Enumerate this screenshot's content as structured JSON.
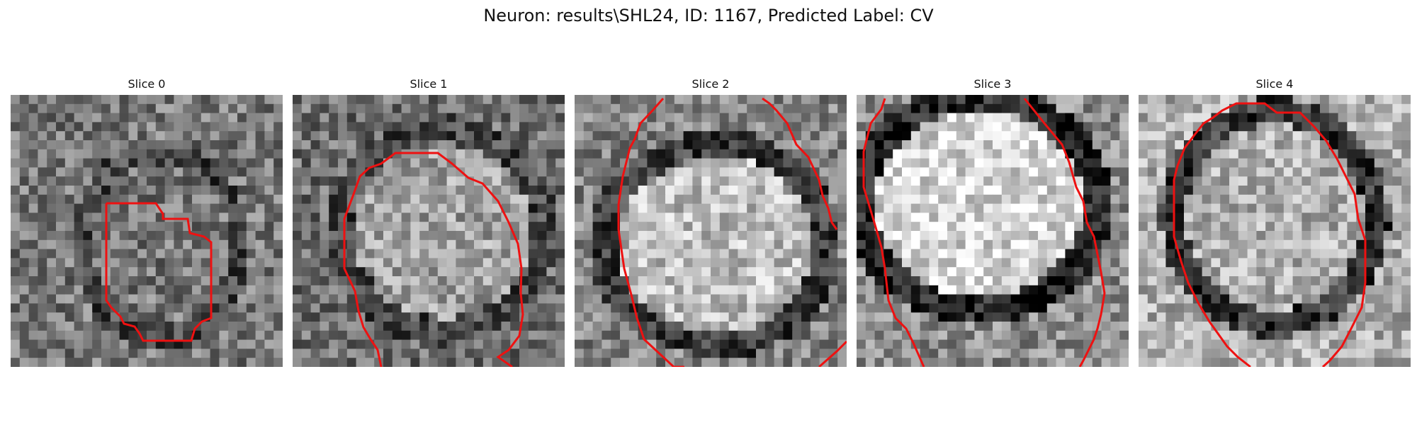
{
  "figure": {
    "title": "Neuron: results\\SHL24, ID: 1167, Predicted Label: CV"
  },
  "panels": [
    {
      "title": "Slice 0"
    },
    {
      "title": "Slice 1"
    },
    {
      "title": "Slice 2"
    },
    {
      "title": "Slice 3"
    },
    {
      "title": "Slice 4"
    }
  ],
  "colors": {
    "contour": "#ee1111",
    "background": "#ffffff"
  }
}
